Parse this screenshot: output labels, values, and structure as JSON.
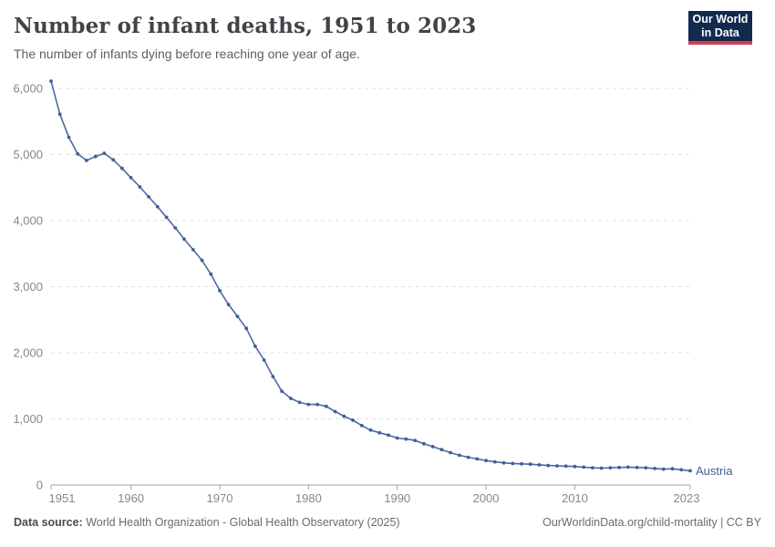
{
  "header": {
    "title": "Number of infant deaths, 1951 to 2023",
    "subtitle": "The number of infants dying before reaching one year of age.",
    "logo": {
      "line1": "Our World",
      "line2": "in Data"
    }
  },
  "chart_data": {
    "type": "line",
    "title": "Number of infant deaths, 1951 to 2023",
    "xlabel": "",
    "ylabel": "",
    "grid": "horizontal-dashed",
    "legend_position": "end-of-line-label",
    "xlim": [
      1951,
      2023
    ],
    "ylim": [
      0,
      6200
    ],
    "x_ticks": [
      1951,
      1960,
      1970,
      1980,
      1990,
      2000,
      2010,
      2023
    ],
    "y_ticks": [
      0,
      1000,
      2000,
      3000,
      4000,
      5000,
      6000
    ],
    "y_tick_labels": [
      "0",
      "1,000",
      "2,000",
      "3,000",
      "4,000",
      "5,000",
      "6,000"
    ],
    "series": [
      {
        "name": "Austria",
        "color": "#4c6a9e",
        "marker_color": "#3f5f9a",
        "x": [
          1951,
          1952,
          1953,
          1954,
          1955,
          1956,
          1957,
          1958,
          1959,
          1960,
          1961,
          1962,
          1963,
          1964,
          1965,
          1966,
          1967,
          1968,
          1969,
          1970,
          1971,
          1972,
          1973,
          1974,
          1975,
          1976,
          1977,
          1978,
          1979,
          1980,
          1981,
          1982,
          1983,
          1984,
          1985,
          1986,
          1987,
          1988,
          1989,
          1990,
          1991,
          1992,
          1993,
          1994,
          1995,
          1996,
          1997,
          1998,
          1999,
          2000,
          2001,
          2002,
          2003,
          2004,
          2005,
          2006,
          2007,
          2008,
          2009,
          2010,
          2011,
          2012,
          2013,
          2014,
          2015,
          2016,
          2017,
          2018,
          2019,
          2020,
          2021,
          2022,
          2023
        ],
        "values": [
          6110,
          5610,
          5260,
          5010,
          4910,
          4970,
          5020,
          4920,
          4790,
          4650,
          4510,
          4360,
          4210,
          4050,
          3890,
          3720,
          3560,
          3400,
          3190,
          2940,
          2730,
          2550,
          2370,
          2100,
          1890,
          1640,
          1420,
          1310,
          1250,
          1220,
          1220,
          1190,
          1110,
          1040,
          980,
          900,
          830,
          790,
          755,
          710,
          695,
          675,
          625,
          580,
          535,
          490,
          450,
          420,
          395,
          370,
          350,
          335,
          325,
          320,
          315,
          305,
          295,
          290,
          285,
          280,
          270,
          260,
          255,
          260,
          265,
          270,
          265,
          260,
          250,
          240,
          245,
          230,
          215
        ]
      }
    ]
  },
  "footer": {
    "datasource_label": "Data source:",
    "datasource_value": " World Health Organization - Global Health Observatory (2025)",
    "link": "OurWorldinData.org/child-mortality | CC BY"
  },
  "colors": {
    "line": "#4c6a9e",
    "marker": "#3f5f9a",
    "entity_label": "#3f5f9a",
    "gridline": "#e0e0e0",
    "axis": "#a3a3a3",
    "tick_text": "#878787",
    "logo_navy": "#122a4e",
    "logo_red": "#d43d52"
  }
}
